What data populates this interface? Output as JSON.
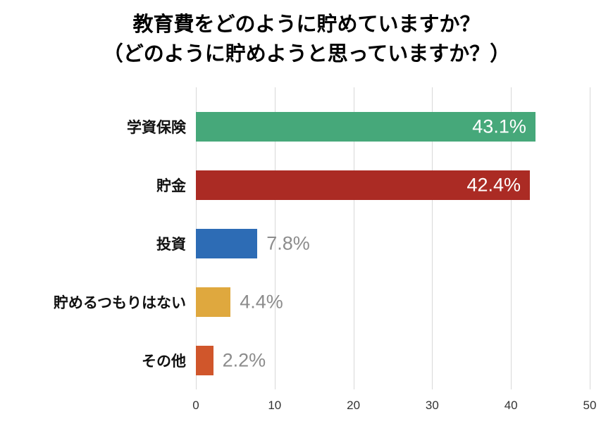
{
  "title": {
    "line1": "教育費をどのように貯めていますか？",
    "line2": "（どのように貯めようと思っていますか？）"
  },
  "chart_data": {
    "type": "bar",
    "orientation": "horizontal",
    "title": "教育費をどのように貯めていますか？（どのように貯めようと思っていますか？）",
    "categories": [
      "学資保険",
      "貯金",
      "投資",
      "貯めるつもりはない",
      "その他"
    ],
    "values": [
      43.1,
      42.4,
      7.8,
      4.4,
      2.2
    ],
    "value_labels": [
      "43.1%",
      "42.4%",
      "7.8%",
      "4.4%",
      "2.2%"
    ],
    "bar_colors": [
      "#46a87a",
      "#ab2b24",
      "#2d6cb5",
      "#dfa83e",
      "#d0562b"
    ],
    "xlim": [
      0,
      50
    ],
    "x_ticks": [
      0,
      10,
      20,
      30,
      40,
      50
    ],
    "grid": true,
    "gridline_color": "#d8d8d8",
    "inside_label_threshold": 20,
    "inside_label_color": "#ffffff",
    "outside_label_color": "#8c8c8c",
    "legend": "none"
  }
}
